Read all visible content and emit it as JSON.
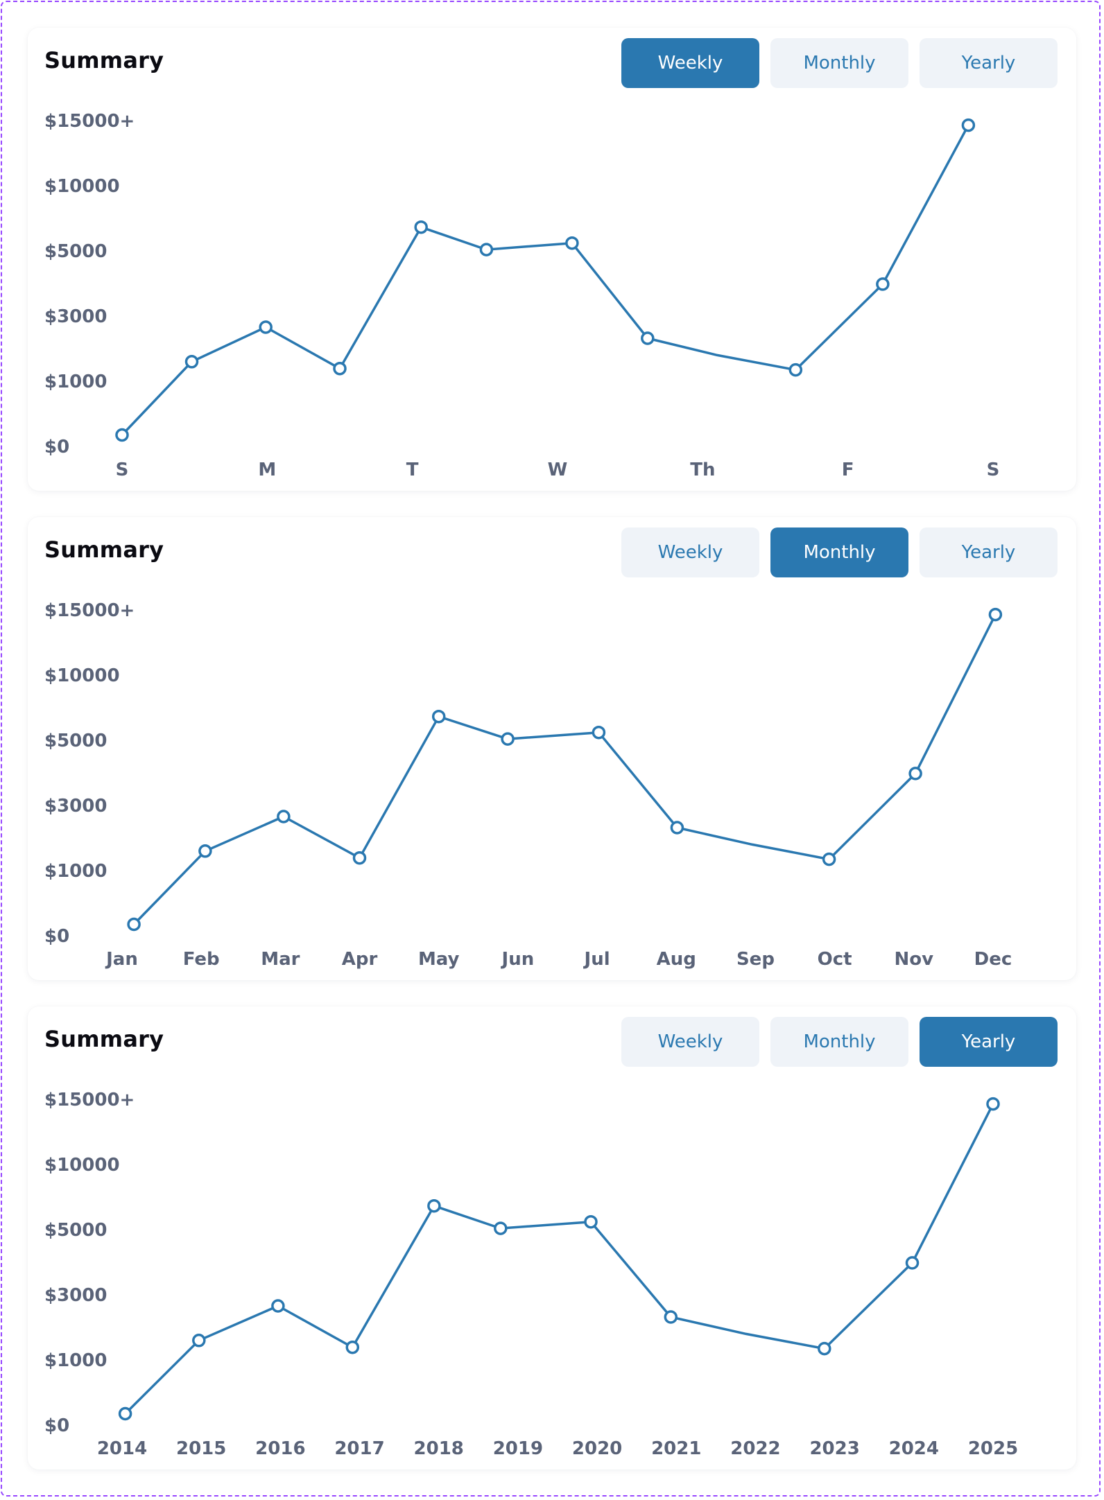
{
  "cards": [
    {
      "title": "Summary",
      "buttons": {
        "weekly": "Weekly",
        "monthly": "Monthly",
        "yearly": "Yearly"
      },
      "active": "weekly"
    },
    {
      "title": "Summary",
      "buttons": {
        "weekly": "Weekly",
        "monthly": "Monthly",
        "yearly": "Yearly"
      },
      "active": "monthly"
    },
    {
      "title": "Summary",
      "buttons": {
        "weekly": "Weekly",
        "monthly": "Monthly",
        "yearly": "Yearly"
      },
      "active": "yearly"
    }
  ],
  "colors": {
    "accent": "#2a78b0",
    "button_bg": "#eff3f8",
    "tick_text": "#5a6378",
    "border": "#9747ff"
  },
  "chart_data": [
    {
      "type": "line",
      "title": "Summary",
      "period": "Weekly",
      "y_tick_labels": [
        "$15000+",
        "$10000",
        "$5000",
        "$3000",
        "$1000",
        "$0"
      ],
      "categories": [
        "S",
        "M",
        "T",
        "W",
        "Th",
        "F",
        "S"
      ],
      "points": [
        {
          "x": 0.0,
          "y": 0.35
        },
        {
          "x": 0.48,
          "y": 2.6
        },
        {
          "x": 0.99,
          "y": 3.66
        },
        {
          "x": 1.5,
          "y": 2.39
        },
        {
          "x": 2.06,
          "y": 6.73
        },
        {
          "x": 2.51,
          "y": 6.04
        },
        {
          "x": 3.1,
          "y": 6.24
        },
        {
          "x": 3.62,
          "y": 3.32
        },
        {
          "x": 4.1,
          "y": 2.8
        },
        {
          "x": 4.64,
          "y": 2.35
        },
        {
          "x": 5.24,
          "y": 4.98
        },
        {
          "x": 5.83,
          "y": 9.86
        }
      ],
      "marker_indices": [
        0,
        1,
        2,
        3,
        4,
        5,
        6,
        7,
        9,
        10,
        11
      ]
    },
    {
      "type": "line",
      "title": "Summary",
      "period": "Monthly",
      "y_tick_labels": [
        "$15000+",
        "$10000",
        "$5000",
        "$3000",
        "$1000",
        "$0"
      ],
      "categories": [
        "Jan",
        "Feb",
        "Mar",
        "Apr",
        "May",
        "Jun",
        "Jul",
        "Aug",
        "Sep",
        "Oct",
        "Nov",
        "Dec"
      ],
      "points": [
        {
          "x": 0.15,
          "y": 0.35
        },
        {
          "x": 1.05,
          "y": 2.6
        },
        {
          "x": 2.04,
          "y": 3.66
        },
        {
          "x": 3.0,
          "y": 2.39
        },
        {
          "x": 4.0,
          "y": 6.73
        },
        {
          "x": 4.87,
          "y": 6.04
        },
        {
          "x": 6.02,
          "y": 6.24
        },
        {
          "x": 7.01,
          "y": 3.32
        },
        {
          "x": 7.96,
          "y": 2.8
        },
        {
          "x": 8.93,
          "y": 2.35
        },
        {
          "x": 10.02,
          "y": 4.98
        },
        {
          "x": 11.03,
          "y": 9.86
        }
      ],
      "marker_indices": [
        0,
        1,
        2,
        3,
        4,
        5,
        6,
        7,
        9,
        10,
        11
      ]
    },
    {
      "type": "line",
      "title": "Summary",
      "period": "Yearly",
      "y_tick_labels": [
        "$15000+",
        "$10000",
        "$5000",
        "$3000",
        "$1000",
        "$0"
      ],
      "categories": [
        "2014",
        "2015",
        "2016",
        "2017",
        "2018",
        "2019",
        "2020",
        "2021",
        "2022",
        "2023",
        "2024",
        "2025"
      ],
      "points": [
        {
          "x": 0.04,
          "y": 0.35
        },
        {
          "x": 0.97,
          "y": 2.6
        },
        {
          "x": 1.97,
          "y": 3.66
        },
        {
          "x": 2.91,
          "y": 2.39
        },
        {
          "x": 3.94,
          "y": 6.73
        },
        {
          "x": 4.78,
          "y": 6.04
        },
        {
          "x": 5.92,
          "y": 6.24
        },
        {
          "x": 6.93,
          "y": 3.32
        },
        {
          "x": 7.88,
          "y": 2.8
        },
        {
          "x": 8.87,
          "y": 2.35
        },
        {
          "x": 9.98,
          "y": 4.98
        },
        {
          "x": 11.0,
          "y": 9.86
        }
      ],
      "marker_indices": [
        0,
        1,
        2,
        3,
        4,
        5,
        6,
        7,
        9,
        10,
        11
      ]
    }
  ]
}
